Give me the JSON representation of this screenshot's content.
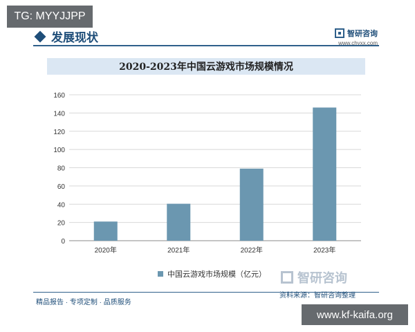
{
  "badges": {
    "top_left": "TG: MYYJJPP",
    "bottom_right": "www.kf-kaifa.org"
  },
  "header": {
    "section_title": "发展现状",
    "brand_name": "智研咨询",
    "brand_url": "www.chyxx.com"
  },
  "watermark_brand": "智研咨询",
  "footer": {
    "slogan": "精品报告 · 专项定制 · 品质服务",
    "source": "资料来源：智研咨询整理"
  },
  "colors": {
    "bar": "#6b97b0",
    "accent": "#1f4e79"
  },
  "chart_data": {
    "type": "bar",
    "title": "2020-2023年中国云游戏市场规模情况",
    "categories": [
      "2020年",
      "2021年",
      "2022年",
      "2023年"
    ],
    "series": [
      {
        "name": "中国云游戏市场规模（亿元）",
        "values": [
          21,
          40.5,
          79,
          146
        ]
      }
    ],
    "ylim": [
      0,
      160
    ],
    "yticks": [
      0,
      20,
      40,
      60,
      80,
      100,
      120,
      140,
      160
    ],
    "grid": true,
    "legend": "bottom-center"
  }
}
